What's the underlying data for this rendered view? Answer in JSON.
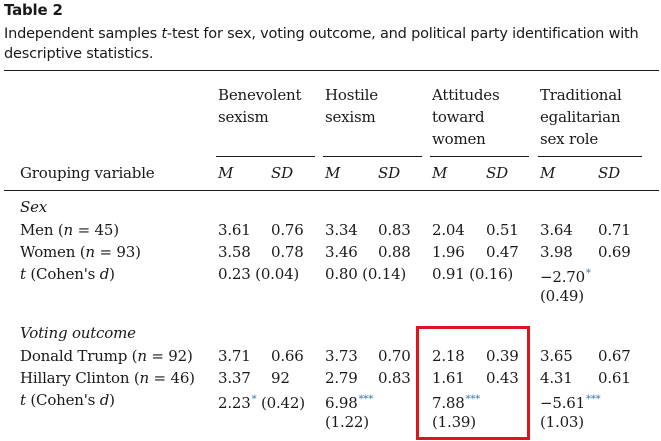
{
  "caption": {
    "label": "Table 2",
    "text_pre": "Independent samples ",
    "text_italic": "t",
    "text_post": "-test for sex, voting outcome, and political party identification with descriptive statistics."
  },
  "headers": {
    "benevolent": [
      "Benevolent",
      "sexism"
    ],
    "hostile": [
      "Hostile",
      "sexism"
    ],
    "attitudes": [
      "Attitudes",
      "toward",
      "women"
    ],
    "traditional": [
      "Traditional",
      "egalitarian",
      "sex role"
    ],
    "grouping": "Grouping variable",
    "m": "M",
    "sd": "SD"
  },
  "sections": {
    "sex": {
      "title": "Sex",
      "men": {
        "label_pre": "Men (",
        "label_n": "n",
        "label_post": " = 45)",
        "vals": [
          "3.61",
          "0.76",
          "3.34",
          "0.83",
          "2.04",
          "0.51",
          "3.64",
          "0.71"
        ]
      },
      "women": {
        "label_pre": "Women (",
        "label_n": "n",
        "label_post": " = 93)",
        "vals": [
          "3.58",
          "0.78",
          "3.46",
          "0.88",
          "1.96",
          "0.47",
          "3.98",
          "0.69"
        ]
      },
      "t": {
        "label_t": "t",
        "label_post": " (Cohen's ",
        "label_d": "d",
        "label_close": ")",
        "benevolent": "0.23 (0.04)",
        "hostile": "0.80 (0.14)",
        "attitudes": "0.91 (0.16)",
        "traditional_val": "−2.70",
        "traditional_sig": "*",
        "traditional_d": "(0.49)"
      }
    },
    "voting": {
      "title": "Voting outcome",
      "trump": {
        "label_pre": "Donald Trump (",
        "label_n": "n",
        "label_post": " = 92)",
        "vals": [
          "3.71",
          "0.66",
          "3.73",
          "0.70",
          "2.18",
          "0.39",
          "3.65",
          "0.67"
        ]
      },
      "clinton": {
        "label_pre": "Hillary Clinton (",
        "label_n": "n",
        "label_post": " = 46)",
        "vals": [
          "3.37",
          "92",
          "2.79",
          "0.83",
          "1.61",
          "0.43",
          "4.31",
          "0.61"
        ]
      },
      "t": {
        "label_t": "t",
        "label_post": " (Cohen's ",
        "label_d": "d",
        "label_close": ")",
        "benevolent_val": "2.23",
        "benevolent_sig": "*",
        "benevolent_d": " (0.42)",
        "hostile_val": "6.98",
        "hostile_sig": "***",
        "hostile_d": "(1.22)",
        "attitudes_val": "7.88",
        "attitudes_sig": "***",
        "attitudes_d": "(1.39)",
        "traditional_val": "−5.61",
        "traditional_sig": "***",
        "traditional_d": "(1.03)"
      }
    }
  },
  "colors": {
    "highlight": "#e0141a",
    "significance": "#3b6fb6"
  }
}
